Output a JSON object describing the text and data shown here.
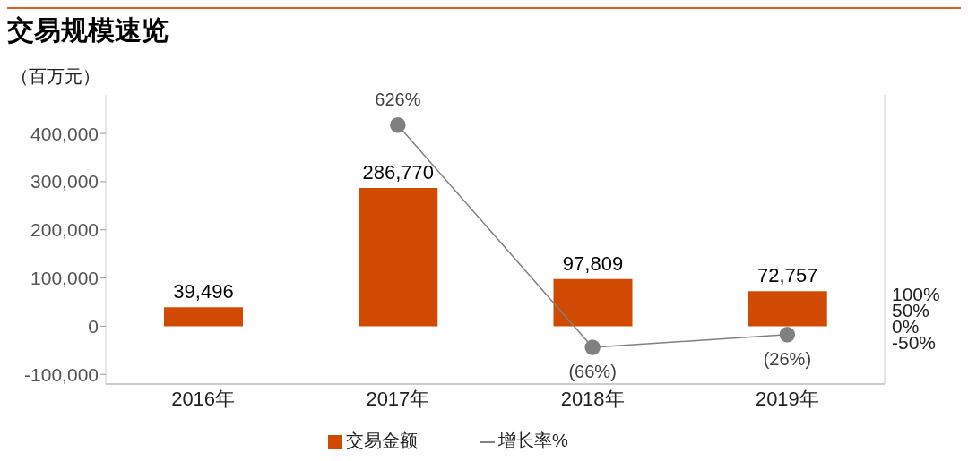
{
  "chart_data": {
    "type": "bar",
    "title": "交易规模速览",
    "ylabel": "（百万元）",
    "categories": [
      "2016年",
      "2017年",
      "2018年",
      "2019年"
    ],
    "series": [
      {
        "name": "交易金额",
        "color": "#d04a02",
        "values": [
          39496,
          286770,
          97809,
          72757
        ],
        "value_labels": [
          "39,496",
          "286,770",
          "97,809",
          "72,757"
        ]
      },
      {
        "name": "增长率%",
        "type": "line",
        "axis": "y2",
        "color": "#808080",
        "values": [
          null,
          626,
          -66,
          -26
        ],
        "value_labels": [
          null,
          "626%",
          "(66%)",
          "(26%)"
        ]
      }
    ],
    "ylim": [
      -120000,
      480000
    ],
    "yticks": [
      {
        "value": -100000,
        "label": "-100,000"
      },
      {
        "value": 0,
        "label": "0"
      },
      {
        "value": 100000,
        "label": "100,000"
      },
      {
        "value": 200000,
        "label": "200,000"
      },
      {
        "value": 300000,
        "label": "300,000"
      },
      {
        "value": 400000,
        "label": "400,000"
      }
    ],
    "y2lim": [
      -180,
      720
    ],
    "y2ticks": [
      {
        "value": -50,
        "label": "-50%"
      },
      {
        "value": 0,
        "label": "0%"
      },
      {
        "value": 50,
        "label": "50%"
      },
      {
        "value": 100,
        "label": "100%"
      }
    ],
    "marker": "circle",
    "grid": false,
    "legend": "bottom"
  }
}
